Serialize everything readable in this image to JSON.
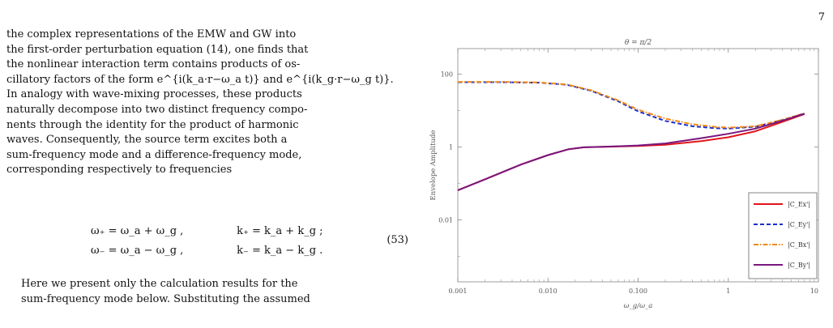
{
  "page_number": "7",
  "body": {
    "para1_lines": [
      "the complex representations of the EMW and GW into",
      "the first-order perturbation equation (14), one finds that",
      "the nonlinear interaction term contains products of os-",
      "cillatory factors of the form e^{i(k_a·r−ω_a t)} and e^{i(k_g·r−ω_g t)}.",
      "In analogy with wave-mixing processes, these products",
      "naturally decompose into two distinct frequency compo-",
      "nents through the identity for the product of harmonic",
      "waves.  Consequently, the source term excites both a",
      "sum-frequency mode and a difference-frequency mode,",
      "corresponding respectively to frequencies"
    ],
    "equation": {
      "row1_lhs": "ω₊ = ω_a + ω_g ,",
      "row1_rhs": "k₊ = k_a + k_g ;",
      "row2_lhs": "ω₋ = ω_a − ω_g ,",
      "row2_rhs": "k₋ = k_a − k_g .",
      "number": "(53)"
    },
    "para2_lines": [
      "Here we present only the calculation results for the",
      "sum-frequency mode below.  Substituting the assumed"
    ]
  },
  "chart_data": {
    "type": "line",
    "title": "θ = π/2",
    "xlabel": "ω_g/ω_a",
    "ylabel": "Envelope Amplitude",
    "x_scale": "log",
    "y_scale": "log",
    "xlim": [
      0.001,
      10
    ],
    "ylim": [
      0.0002,
      500
    ],
    "x_ticks": [
      0.001,
      0.01,
      0.1,
      1,
      10
    ],
    "x_tick_labels": [
      "0.001",
      "0.010",
      "0.100",
      "1",
      "10"
    ],
    "y_ticks": [
      0.01,
      1,
      100
    ],
    "y_tick_labels": [
      "0.01",
      "1",
      "100"
    ],
    "legend_position": "bottom-right",
    "series": [
      {
        "name": "|C_Ex'|",
        "color": "#e0161b",
        "style": "solid",
        "points": [
          [
            0.001,
            0.065
          ],
          [
            0.002,
            0.13
          ],
          [
            0.005,
            0.33
          ],
          [
            0.01,
            0.6
          ],
          [
            0.017,
            0.87
          ],
          [
            0.025,
            0.98
          ],
          [
            0.05,
            1.02
          ],
          [
            0.1,
            1.07
          ],
          [
            0.2,
            1.15
          ],
          [
            0.5,
            1.45
          ],
          [
            1,
            1.85
          ],
          [
            2,
            2.7
          ],
          [
            4,
            4.9
          ],
          [
            7,
            8.0
          ]
        ]
      },
      {
        "name": "|C_Ey'|",
        "color": "#1c2fcf",
        "style": "dashed",
        "points": [
          [
            0.001,
            60
          ],
          [
            0.003,
            60
          ],
          [
            0.008,
            58
          ],
          [
            0.016,
            51
          ],
          [
            0.03,
            35
          ],
          [
            0.06,
            18
          ],
          [
            0.1,
            9.5
          ],
          [
            0.2,
            5.2
          ],
          [
            0.4,
            3.7
          ],
          [
            0.7,
            3.3
          ],
          [
            1,
            3.2
          ],
          [
            2,
            3.6
          ],
          [
            4,
            5.5
          ],
          [
            7,
            8.3
          ]
        ]
      },
      {
        "name": "|C_Bx'|",
        "color": "#f28a16",
        "style": "dash-dot",
        "points": [
          [
            0.001,
            61
          ],
          [
            0.003,
            61
          ],
          [
            0.008,
            59
          ],
          [
            0.016,
            52
          ],
          [
            0.03,
            36
          ],
          [
            0.06,
            19
          ],
          [
            0.1,
            10.5
          ],
          [
            0.2,
            6.0
          ],
          [
            0.4,
            4.2
          ],
          [
            0.7,
            3.6
          ],
          [
            1,
            3.4
          ],
          [
            2,
            3.7
          ],
          [
            4,
            5.6
          ],
          [
            7,
            8.4
          ]
        ]
      },
      {
        "name": "|C_By'|",
        "color": "#7a167e",
        "style": "solid",
        "points": [
          [
            0.001,
            0.065
          ],
          [
            0.002,
            0.13
          ],
          [
            0.005,
            0.33
          ],
          [
            0.01,
            0.6
          ],
          [
            0.017,
            0.87
          ],
          [
            0.025,
            0.98
          ],
          [
            0.05,
            1.03
          ],
          [
            0.1,
            1.1
          ],
          [
            0.2,
            1.25
          ],
          [
            0.5,
            1.75
          ],
          [
            1,
            2.3
          ],
          [
            2,
            3.2
          ],
          [
            4,
            5.3
          ],
          [
            7,
            8.2
          ]
        ]
      }
    ]
  }
}
